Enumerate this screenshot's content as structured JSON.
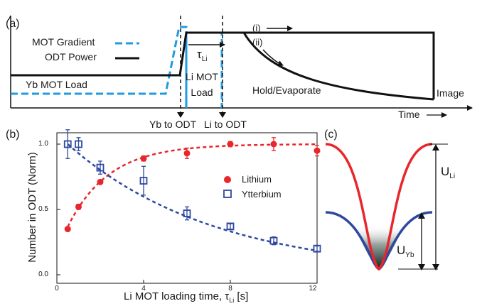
{
  "panel_a": {
    "label": "(a)",
    "legend": {
      "gradient": "MOT Gradient",
      "power": "ODT Power"
    },
    "phases": {
      "yb_load": "Yb MOT Load",
      "li_load_1": "Li MOT",
      "li_load_2": "Load",
      "hold": "Hold/Evaporate",
      "image": "Image"
    },
    "branches": {
      "i": "(i)",
      "ii": "(ii)"
    },
    "tau": {
      "symbol": "τ",
      "sub": "Li"
    },
    "markers": {
      "yb_to_odt": "Yb to ODT",
      "li_to_odt": "Li to ODT"
    },
    "time_axis": "Time",
    "colors": {
      "gradient": "#1f9be0",
      "power": "#111111"
    }
  },
  "panel_b": {
    "label": "(b)",
    "ylabel": "Number in ODT (Norm)",
    "xlabel_main": "Li MOT loading time, τ",
    "xlabel_sub": "Li",
    "xlabel_unit": " [s]",
    "xticks": [
      "0",
      "4",
      "8",
      "12"
    ],
    "yticks": [
      "0.0",
      "0.5",
      "1.0"
    ],
    "legend": {
      "lithium": "Lithium",
      "ytterbium": "Ytterbium"
    },
    "colors": {
      "lithium": "#e8262b",
      "ytterbium": "#2e48a0"
    }
  },
  "panel_c": {
    "label": "(c)",
    "u_li": {
      "symbol": "U",
      "sub": "Li"
    },
    "u_yb": {
      "symbol": "U",
      "sub": "Yb"
    }
  },
  "chart_data": {
    "type": "scatter",
    "xlabel": "Li MOT loading time, τLi [s]",
    "ylabel": "Number in ODT (Norm)",
    "xlim": [
      0,
      12
    ],
    "ylim": [
      0,
      1.1
    ],
    "series": [
      {
        "name": "Lithium",
        "marker": "filled-circle",
        "color": "#e8262b",
        "points": [
          {
            "x": 0.5,
            "y": 0.35,
            "err": 0.01
          },
          {
            "x": 1.0,
            "y": 0.52,
            "err": 0.02
          },
          {
            "x": 2.0,
            "y": 0.71,
            "err": 0.01
          },
          {
            "x": 4.0,
            "y": 0.89,
            "err": 0.02
          },
          {
            "x": 6.0,
            "y": 0.93,
            "err": 0.04
          },
          {
            "x": 8.0,
            "y": 1.0,
            "err": 0.02
          },
          {
            "x": 10.0,
            "y": 1.0,
            "err": 0.05
          },
          {
            "x": 12.0,
            "y": 0.95,
            "err": 0.04
          }
        ],
        "fit": {
          "form": "A(1-exp(-x/t))",
          "A": 1.0,
          "t": 1.9,
          "x0": 0.5
        }
      },
      {
        "name": "Ytterbium",
        "marker": "open-square",
        "color": "#2e48a0",
        "points": [
          {
            "x": 0.5,
            "y": 1.0,
            "err": 0.11
          },
          {
            "x": 1.0,
            "y": 1.0,
            "err": 0.05
          },
          {
            "x": 2.0,
            "y": 0.82,
            "err": 0.05
          },
          {
            "x": 4.0,
            "y": 0.72,
            "err": 0.11
          },
          {
            "x": 6.0,
            "y": 0.47,
            "err": 0.05
          },
          {
            "x": 8.0,
            "y": 0.37,
            "err": 0.02
          },
          {
            "x": 10.0,
            "y": 0.26,
            "err": 0.03
          },
          {
            "x": 12.0,
            "y": 0.2,
            "err": 0.02
          }
        ],
        "fit": {
          "form": "exp(-(x-0.5)/t)",
          "t": 6.8
        }
      }
    ]
  }
}
